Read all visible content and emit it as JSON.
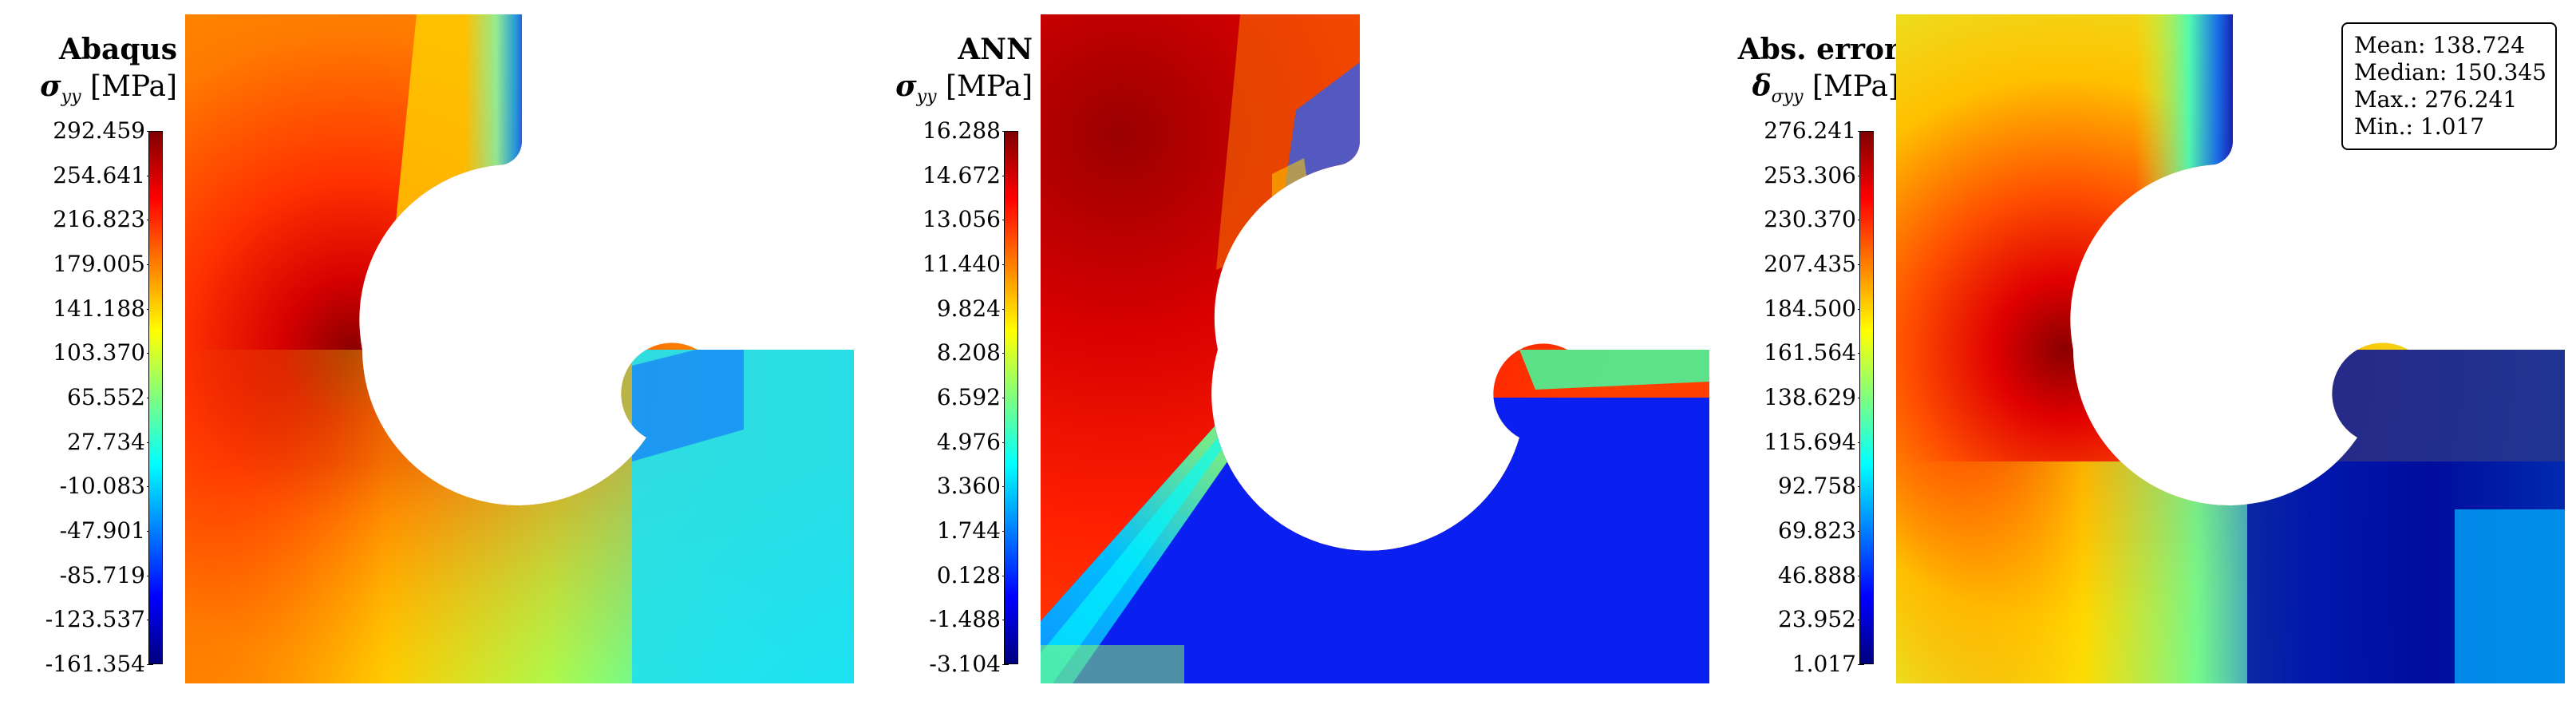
{
  "panels": [
    {
      "title": "Abaqus",
      "symbol": "σ",
      "symbol_sub": "yy",
      "unit": "[MPa]",
      "colormap": "jet",
      "ticks": [
        "292.459",
        "254.641",
        "216.823",
        "179.005",
        "141.188",
        "103.370",
        "65.552",
        "27.734",
        "-10.083",
        "-47.901",
        "-85.719",
        "-123.537",
        "-161.354"
      ]
    },
    {
      "title": "ANN",
      "symbol": "σ",
      "symbol_sub": "yy",
      "unit": "[MPa]",
      "colormap": "jet",
      "ticks": [
        "16.288",
        "14.672",
        "13.056",
        "11.440",
        "9.824",
        "8.208",
        "6.592",
        "4.976",
        "3.360",
        "1.744",
        "0.128",
        "-1.488",
        "-3.104"
      ]
    },
    {
      "title": "Abs. error",
      "symbol": "δ",
      "symbol_sub": "σyy",
      "unit": "[MPa]",
      "colormap": "jet",
      "ticks": [
        "276.241",
        "253.306",
        "230.370",
        "207.435",
        "184.500",
        "161.564",
        "138.629",
        "115.694",
        "92.758",
        "69.823",
        "46.888",
        "23.952",
        "1.017"
      ]
    }
  ],
  "error_stats": {
    "mean": "Mean: 138.724",
    "median": "Median: 150.345",
    "max": "Max.: 276.241",
    "min": "Min.: 1.017"
  },
  "colors": {
    "jet_dark_red": "#7f0000",
    "jet_red": "#ff0000",
    "jet_orange": "#ff7f00",
    "jet_yellow": "#ffff00",
    "jet_green": "#7fff7f",
    "jet_cyan": "#00ffff",
    "jet_light_blue": "#007fff",
    "jet_blue": "#0000ff",
    "jet_dark_blue": "#00007f"
  }
}
